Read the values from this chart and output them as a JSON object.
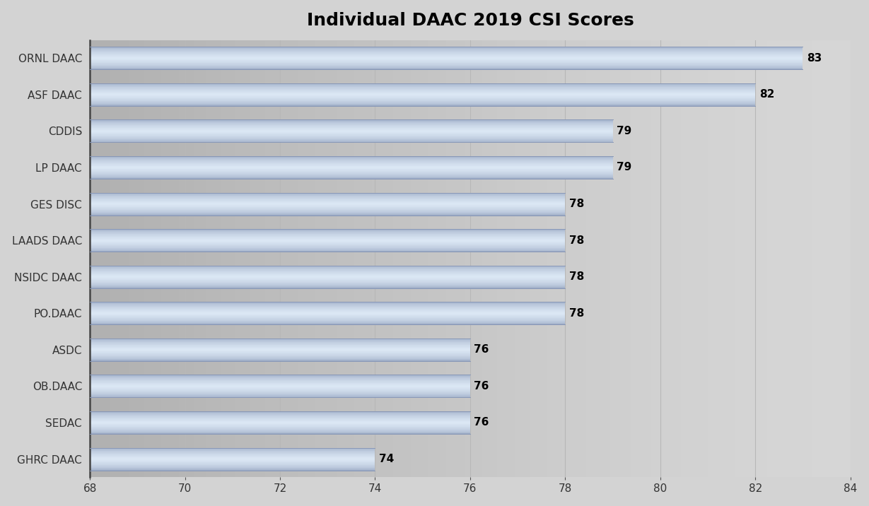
{
  "title": "Individual DAAC 2019 CSI Scores",
  "categories": [
    "GHRC DAAC",
    "SEDAC",
    "OB.DAAC",
    "ASDC",
    "PO.DAAC",
    "NSIDC DAAC",
    "LAADS DAAC",
    "GES DISC",
    "LP DAAC",
    "CDDIS",
    "ASF DAAC",
    "ORNL DAAC"
  ],
  "values": [
    74,
    76,
    76,
    76,
    78,
    78,
    78,
    78,
    79,
    79,
    82,
    83
  ],
  "xlim": [
    68,
    84
  ],
  "xticks": [
    68,
    70,
    72,
    74,
    76,
    78,
    80,
    82,
    84
  ],
  "bar_color_top": "#aab8d4",
  "bar_color_mid": "#dce5f0",
  "bar_color_bot": "#aab8d4",
  "label_color": "#000000",
  "title_fontsize": 18,
  "tick_fontsize": 11,
  "label_fontsize": 11,
  "background_color": "#d3d3d3",
  "plot_bg_color_left": "#c8c8c8",
  "plot_bg_color_right": "#e0e0e0",
  "bar_height": 0.62,
  "gap_color": "#c8c8c8",
  "grid_color": "#b0b0b0",
  "spine_color": "#444444"
}
